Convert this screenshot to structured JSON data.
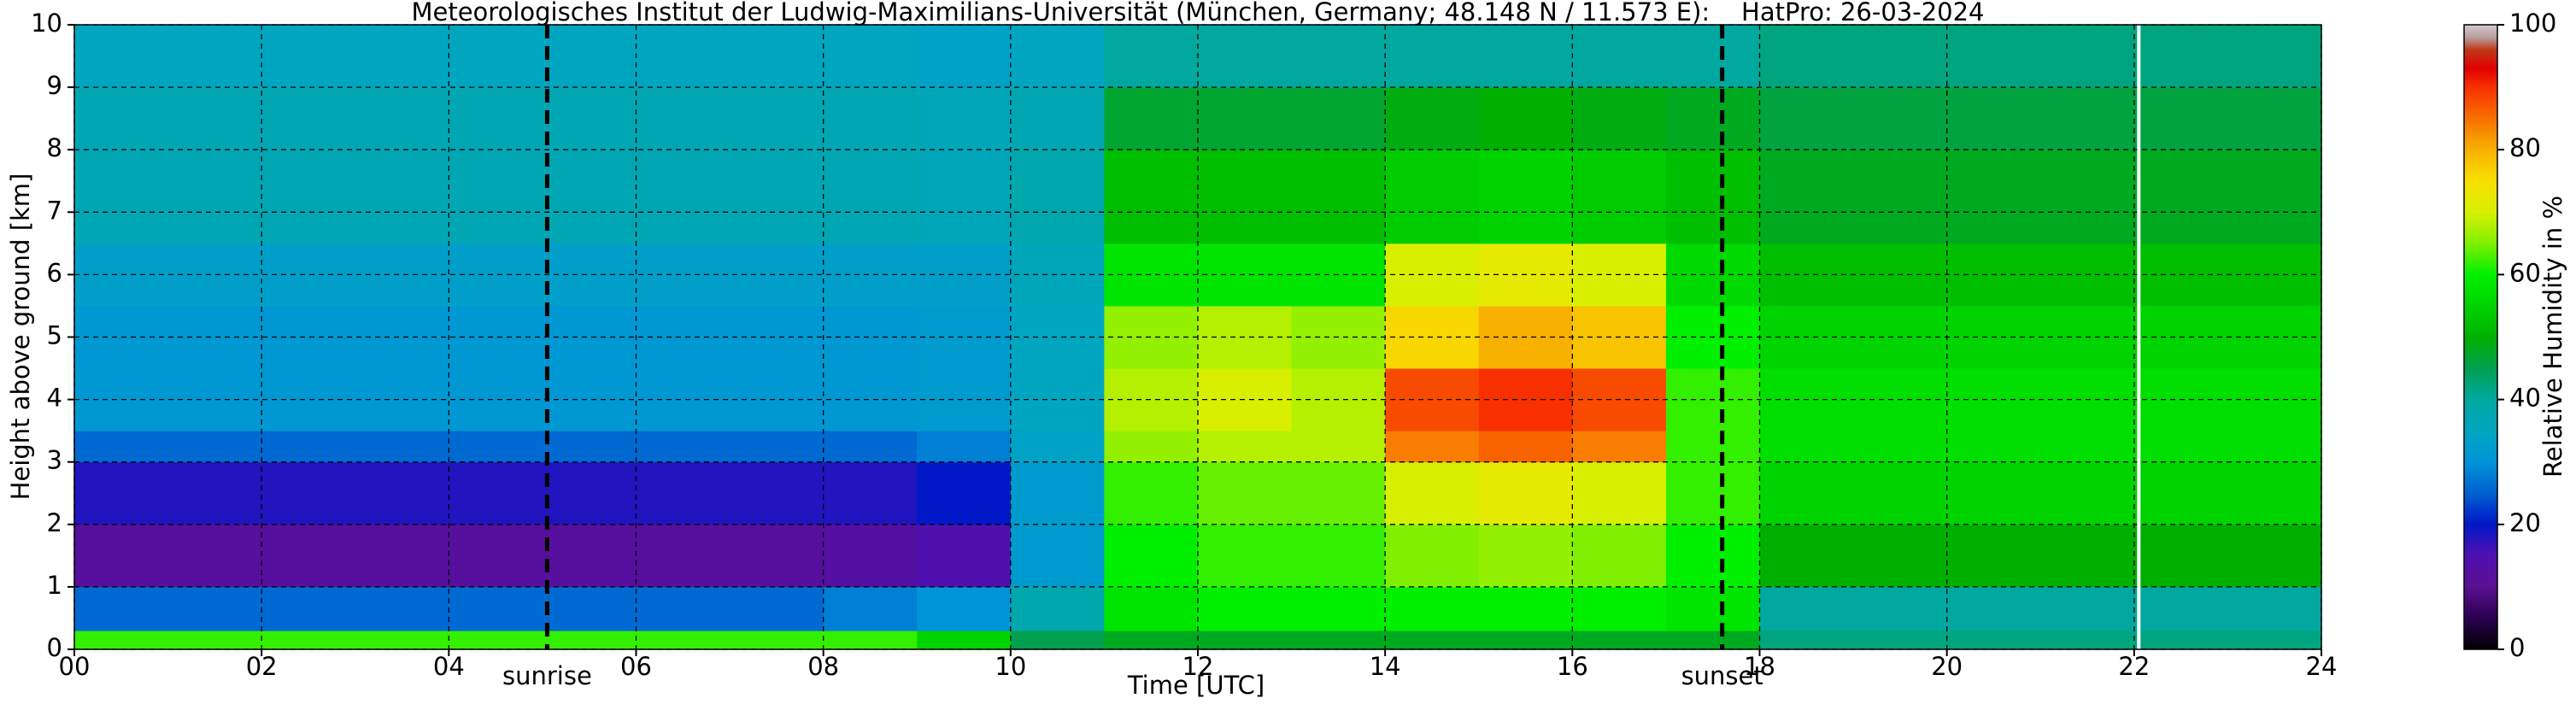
{
  "chart_data": {
    "type": "heatmap",
    "title": "Meteorologisches Institut der Ludwig-Maximilians-Universität (München, Germany; 48.148 N / 11.573 E):    HatPro: 26-03-2024",
    "x_label": "Time [UTC]",
    "y_label": "Height above ground [km]",
    "colorbar_label": "Relative Humidity in %",
    "x_edges": [
      0,
      1,
      2,
      3,
      4,
      5,
      6,
      7,
      8,
      9,
      10,
      11,
      12,
      13,
      14,
      15,
      16,
      17,
      18,
      19,
      20,
      21,
      22,
      23,
      24
    ],
    "y_edges": [
      0,
      0.3,
      1,
      2,
      3,
      3.5,
      4.5,
      5.5,
      6.5,
      8,
      9,
      10
    ],
    "z": [
      [
        62,
        62,
        62,
        62,
        62,
        62,
        62,
        62,
        62,
        55,
        45,
        48,
        48,
        48,
        48,
        48,
        48,
        48,
        42,
        42,
        42,
        42,
        42,
        42
      ],
      [
        26,
        26,
        26,
        26,
        26,
        26,
        26,
        26,
        28,
        30,
        38,
        58,
        60,
        60,
        60,
        60,
        60,
        58,
        40,
        40,
        40,
        40,
        40,
        40
      ],
      [
        12,
        12,
        12,
        12,
        12,
        12,
        12,
        12,
        13,
        15,
        32,
        60,
        62,
        62,
        65,
        66,
        65,
        60,
        50,
        50,
        50,
        50,
        50,
        50
      ],
      [
        18,
        18,
        18,
        18,
        18,
        18,
        18,
        18,
        18,
        20,
        32,
        62,
        64,
        64,
        70,
        72,
        70,
        62,
        55,
        55,
        55,
        55,
        55,
        55
      ],
      [
        26,
        26,
        26,
        26,
        26,
        26,
        26,
        26,
        26,
        28,
        34,
        66,
        68,
        68,
        84,
        86,
        84,
        62,
        57,
        57,
        57,
        57,
        57,
        57
      ],
      [
        31,
        31,
        31,
        31,
        31,
        31,
        31,
        31,
        31,
        32,
        35,
        68,
        70,
        68,
        88,
        90,
        88,
        62,
        57,
        57,
        57,
        57,
        57,
        57
      ],
      [
        31,
        31,
        31,
        31,
        31,
        31,
        31,
        31,
        31,
        32,
        35,
        66,
        68,
        66,
        76,
        80,
        78,
        60,
        55,
        55,
        55,
        55,
        55,
        55
      ],
      [
        33,
        33,
        33,
        33,
        33,
        33,
        33,
        33,
        33,
        33,
        36,
        58,
        58,
        58,
        70,
        72,
        70,
        56,
        52,
        52,
        52,
        52,
        52,
        52
      ],
      [
        37,
        37,
        37,
        37,
        37,
        37,
        37,
        37,
        37,
        36,
        38,
        52,
        52,
        52,
        54,
        55,
        54,
        52,
        48,
        48,
        48,
        48,
        48,
        48
      ],
      [
        37,
        37,
        37,
        37,
        37,
        37,
        37,
        37,
        37,
        36,
        37,
        47,
        47,
        47,
        49,
        50,
        49,
        48,
        46,
        46,
        46,
        46,
        46,
        46
      ],
      [
        35,
        35,
        35,
        35,
        35,
        35,
        35,
        35,
        35,
        34,
        35,
        40,
        40,
        40,
        40,
        40,
        40,
        40,
        42,
        42,
        42,
        42,
        42,
        42
      ]
    ],
    "xlim": [
      0,
      24
    ],
    "xticks": [
      {
        "value": 0,
        "label": "00"
      },
      {
        "value": 2,
        "label": "02"
      },
      {
        "value": 4,
        "label": "04"
      },
      {
        "value": 6,
        "label": "06"
      },
      {
        "value": 8,
        "label": "08"
      },
      {
        "value": 10,
        "label": "10"
      },
      {
        "value": 12,
        "label": "12"
      },
      {
        "value": 14,
        "label": "14"
      },
      {
        "value": 16,
        "label": "16"
      },
      {
        "value": 18,
        "label": "18"
      },
      {
        "value": 20,
        "label": "20"
      },
      {
        "value": 22,
        "label": "22"
      },
      {
        "value": 24,
        "label": "24"
      }
    ],
    "ylim": [
      0,
      10
    ],
    "yticks": [
      0,
      1,
      2,
      3,
      4,
      5,
      6,
      7,
      8,
      9,
      10
    ],
    "grid": true,
    "markers": [
      {
        "x": 5.05,
        "label": "sunrise"
      },
      {
        "x": 17.6,
        "label": "sunset"
      }
    ],
    "gaps": [
      22.05
    ],
    "clim": [
      0,
      100
    ],
    "cticks": [
      0,
      20,
      40,
      60,
      80,
      100
    ],
    "colorscale": [
      [
        0,
        "#000000"
      ],
      [
        5,
        "#2a0050"
      ],
      [
        10,
        "#5a1090"
      ],
      [
        15,
        "#5010b0"
      ],
      [
        20,
        "#0018c8"
      ],
      [
        25,
        "#0060d0"
      ],
      [
        30,
        "#0094d8"
      ],
      [
        35,
        "#00a6c0"
      ],
      [
        40,
        "#00a8a0"
      ],
      [
        45,
        "#00a050"
      ],
      [
        50,
        "#00b000"
      ],
      [
        55,
        "#00d400"
      ],
      [
        60,
        "#00f000"
      ],
      [
        65,
        "#80f000"
      ],
      [
        70,
        "#d8f000"
      ],
      [
        75,
        "#f8e000"
      ],
      [
        80,
        "#f8b000"
      ],
      [
        85,
        "#f87000"
      ],
      [
        90,
        "#f83000"
      ],
      [
        93,
        "#e00000"
      ],
      [
        96,
        "#c03818"
      ],
      [
        98,
        "#b8a0a0"
      ],
      [
        100,
        "#d0c8d0"
      ]
    ]
  }
}
